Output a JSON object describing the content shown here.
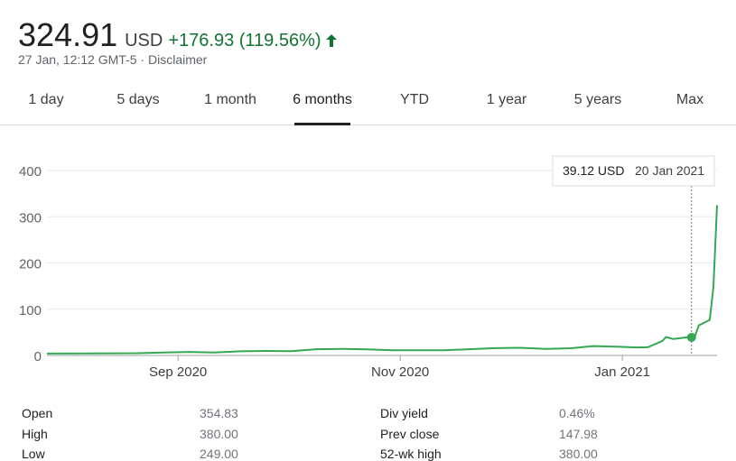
{
  "header": {
    "price": "324.91",
    "currency": "USD",
    "change": "+176.93 (119.56%)",
    "arrow_icon": "arrow-up-icon",
    "timestamp": "27 Jan, 12:12 GMT-5",
    "separator": "·",
    "disclaimer": "Disclaimer",
    "up_color": "#34a853"
  },
  "tabs": [
    {
      "label": "1 day"
    },
    {
      "label": "5 days"
    },
    {
      "label": "1 month"
    },
    {
      "label": "6 months",
      "active": true
    },
    {
      "label": "YTD"
    },
    {
      "label": "1 year"
    },
    {
      "label": "5 years"
    },
    {
      "label": "Max"
    }
  ],
  "tooltip": {
    "value": "39.12 USD",
    "date": "20 Jan 2021"
  },
  "chart_data": {
    "type": "line",
    "ylim": [
      0,
      400
    ],
    "y_ticks": [
      {
        "value": 400,
        "label": "400"
      },
      {
        "value": 300,
        "label": "300"
      },
      {
        "value": 200,
        "label": "200"
      },
      {
        "value": 100,
        "label": "100"
      },
      {
        "value": 0,
        "label": "0"
      }
    ],
    "x_ticks": [
      {
        "date": "2020-09-01",
        "label": "Sep 2020"
      },
      {
        "date": "2020-11-01",
        "label": "Nov 2020"
      },
      {
        "date": "2021-01-01",
        "label": "Jan 2021"
      }
    ],
    "xlim": [
      "2020-07-27",
      "2021-01-27"
    ],
    "grid": true,
    "line_color": "#34a853",
    "series": [
      {
        "points": [
          [
            "2020-07-27",
            4.1
          ],
          [
            "2020-08-07",
            4.3
          ],
          [
            "2020-08-21",
            4.9
          ],
          [
            "2020-08-28",
            6.4
          ],
          [
            "2020-09-04",
            7.6
          ],
          [
            "2020-09-11",
            6.5
          ],
          [
            "2020-09-18",
            8.9
          ],
          [
            "2020-09-25",
            9.7
          ],
          [
            "2020-10-02",
            9.3
          ],
          [
            "2020-10-09",
            13.4
          ],
          [
            "2020-10-16",
            14.3
          ],
          [
            "2020-10-23",
            13.0
          ],
          [
            "2020-10-30",
            11.1
          ],
          [
            "2020-11-06",
            11.4
          ],
          [
            "2020-11-13",
            11.2
          ],
          [
            "2020-11-20",
            13.5
          ],
          [
            "2020-11-27",
            15.9
          ],
          [
            "2020-12-04",
            16.6
          ],
          [
            "2020-12-11",
            14.0
          ],
          [
            "2020-12-18",
            15.6
          ],
          [
            "2020-12-24",
            20.2
          ],
          [
            "2020-12-31",
            18.8
          ],
          [
            "2021-01-05",
            17.4
          ],
          [
            "2021-01-08",
            17.7
          ],
          [
            "2021-01-12",
            31.4
          ],
          [
            "2021-01-13",
            39.9
          ],
          [
            "2021-01-15",
            35.5
          ],
          [
            "2021-01-19",
            39.4
          ],
          [
            "2021-01-20",
            39.1
          ],
          [
            "2021-01-21",
            43.0
          ],
          [
            "2021-01-22",
            65.0
          ],
          [
            "2021-01-25",
            76.8
          ],
          [
            "2021-01-26",
            147.98
          ],
          [
            "2021-01-27",
            324.91
          ]
        ],
        "highlight": {
          "date": "2021-01-20",
          "value": 39.12
        }
      }
    ]
  },
  "stats": {
    "left": [
      {
        "label": "Open",
        "value": "354.83"
      },
      {
        "label": "High",
        "value": "380.00"
      },
      {
        "label": "Low",
        "value": "249.00"
      }
    ],
    "right": [
      {
        "label": "Div yield",
        "value": "0.46%"
      },
      {
        "label": "Prev close",
        "value": "147.98"
      },
      {
        "label": "52-wk high",
        "value": "380.00"
      }
    ]
  }
}
